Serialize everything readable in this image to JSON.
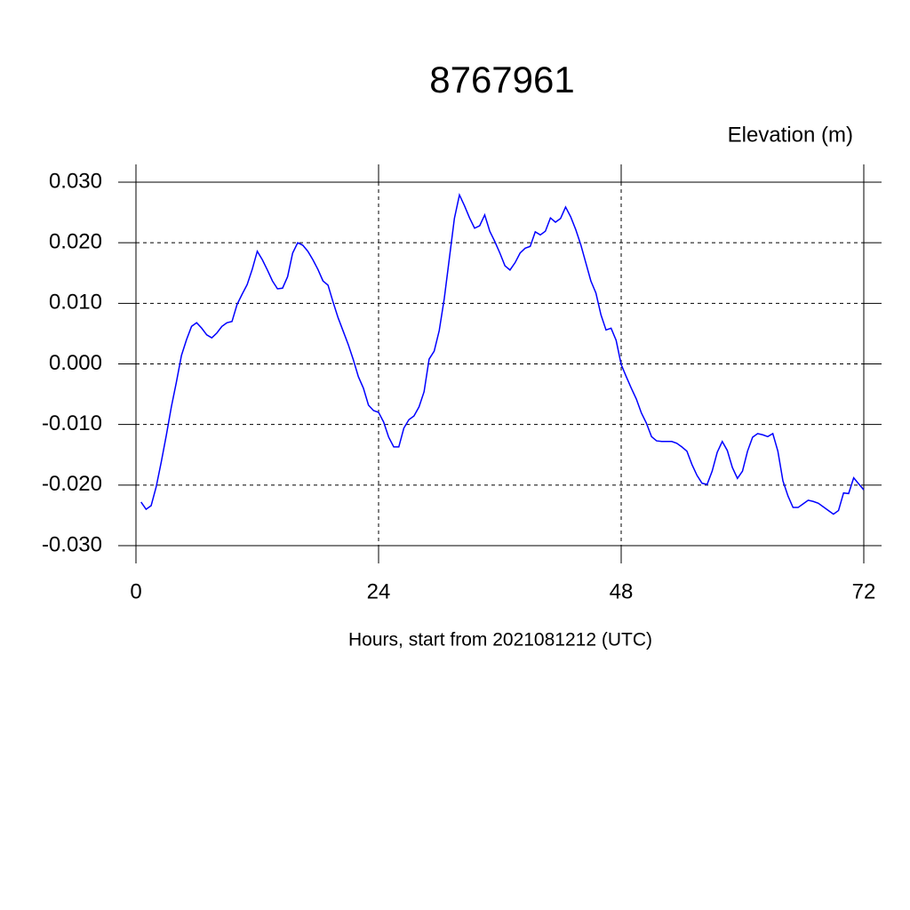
{
  "chart_data": {
    "type": "line",
    "title": "8767961",
    "y_label": "Elevation (m)",
    "x_label": "Hours, start from 2021081212 (UTC)",
    "x": [
      0.5,
      1,
      1.5,
      2,
      2.5,
      3,
      3.5,
      4,
      4.5,
      5,
      5.5,
      6,
      6.5,
      7,
      7.5,
      8,
      8.5,
      9,
      9.5,
      10,
      10.5,
      11,
      11.5,
      12,
      12.5,
      13,
      13.5,
      14,
      14.5,
      15,
      15.5,
      16,
      16.5,
      17,
      17.5,
      18,
      18.5,
      19,
      19.5,
      20,
      20.5,
      21,
      21.5,
      22,
      22.5,
      23,
      23.5,
      24,
      24.5,
      25,
      25.5,
      26,
      26.5,
      27,
      27.5,
      28,
      28.5,
      29,
      29.5,
      30,
      30.5,
      31,
      31.5,
      32,
      32.5,
      33,
      33.5,
      34,
      34.5,
      35,
      35.5,
      36,
      36.5,
      37,
      37.5,
      38,
      38.5,
      39,
      39.5,
      40,
      40.5,
      41,
      41.5,
      42,
      42.5,
      43,
      43.5,
      44,
      44.5,
      45,
      45.5,
      46,
      46.5,
      47,
      47.5,
      48,
      48.5,
      49,
      49.5,
      50,
      50.5,
      51,
      51.5,
      52,
      52.5,
      53,
      53.5,
      54,
      54.5,
      55,
      55.5,
      56,
      56.5,
      57,
      57.5,
      58,
      58.5,
      59,
      59.5,
      60,
      60.5,
      61,
      61.5,
      62,
      62.5,
      63,
      63.5,
      64,
      64.5,
      65,
      65.5,
      66,
      66.5,
      67,
      67.5,
      68,
      68.5,
      69,
      69.5,
      70,
      70.5,
      71,
      71.5,
      72
    ],
    "series": [
      {
        "name": "Elevation",
        "color": "#0000ff",
        "values": [
          -0.0228,
          -0.024,
          -0.0234,
          -0.0203,
          -0.0162,
          -0.0118,
          -0.0071,
          -0.003,
          0.0014,
          0.004,
          0.0062,
          0.0068,
          0.0059,
          0.0048,
          0.0043,
          0.0051,
          0.0062,
          0.0068,
          0.007,
          0.0098,
          0.0115,
          0.0131,
          0.0156,
          0.0186,
          0.0172,
          0.0155,
          0.0137,
          0.0124,
          0.0125,
          0.0144,
          0.0183,
          0.02,
          0.0196,
          0.0186,
          0.0172,
          0.0156,
          0.0137,
          0.013,
          0.0102,
          0.0076,
          0.0054,
          0.0032,
          0.0007,
          -0.0021,
          -0.004,
          -0.0068,
          -0.0077,
          -0.008,
          -0.0096,
          -0.0121,
          -0.0137,
          -0.0137,
          -0.0106,
          -0.0092,
          -0.0086,
          -0.0071,
          -0.0046,
          0.0008,
          0.0021,
          0.0055,
          0.0108,
          0.0174,
          0.024,
          0.0279,
          0.0261,
          0.0241,
          0.0224,
          0.0228,
          0.0246,
          0.0219,
          0.0202,
          0.0183,
          0.0162,
          0.0155,
          0.0167,
          0.0183,
          0.0191,
          0.0194,
          0.0218,
          0.0213,
          0.0219,
          0.0241,
          0.0234,
          0.024,
          0.0259,
          0.0243,
          0.0222,
          0.0197,
          0.0167,
          0.0137,
          0.0117,
          0.0081,
          0.0056,
          0.0059,
          0.0039,
          -0.0001,
          -0.0021,
          -0.004,
          -0.0058,
          -0.0081,
          -0.0098,
          -0.012,
          -0.0127,
          -0.0128,
          -0.0128,
          -0.0128,
          -0.0131,
          -0.0137,
          -0.0144,
          -0.0166,
          -0.0184,
          -0.0197,
          -0.0199,
          -0.0177,
          -0.0146,
          -0.0128,
          -0.0143,
          -0.0171,
          -0.0189,
          -0.0177,
          -0.0144,
          -0.0121,
          -0.0115,
          -0.0117,
          -0.012,
          -0.0115,
          -0.0144,
          -0.0193,
          -0.0218,
          -0.0237,
          -0.0237,
          -0.0231,
          -0.0225,
          -0.0227,
          -0.023,
          -0.0236,
          -0.0242,
          -0.0248,
          -0.0242,
          -0.0213,
          -0.0214,
          -0.0188,
          -0.0198,
          -0.0208
        ]
      }
    ],
    "xlim": [
      0,
      72
    ],
    "xticks": [
      0,
      24,
      48,
      72
    ],
    "ylim": [
      -0.03,
      0.03
    ],
    "yticks": [
      {
        "value": -0.03,
        "label": "-0.030"
      },
      {
        "value": -0.02,
        "label": "-0.020"
      },
      {
        "value": -0.01,
        "label": "-0.010"
      },
      {
        "value": 0,
        "label": "0.000"
      },
      {
        "value": 0.01,
        "label": "0.010"
      },
      {
        "value": 0.02,
        "label": "0.020"
      },
      {
        "value": 0.03,
        "label": "0.030"
      }
    ],
    "grid": true
  }
}
